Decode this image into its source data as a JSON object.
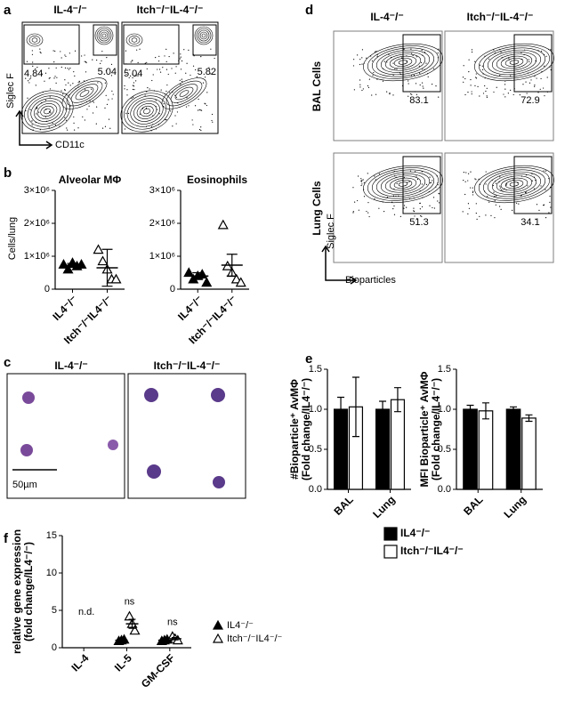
{
  "panel_labels": [
    "a",
    "b",
    "c",
    "d",
    "e",
    "f"
  ],
  "panel_a": {
    "plots": [
      {
        "title": "IL-4⁻/⁻",
        "gates": [
          4.84,
          5.04
        ]
      },
      {
        "title": "Itch⁻/⁻IL-4⁻/⁻",
        "gates": [
          5.04,
          5.82
        ]
      }
    ],
    "ylabel": "Siglec F",
    "xlabel": "CD11c"
  },
  "panel_c": {
    "titles": [
      "IL-4⁻/⁻",
      "Itch⁻/⁻IL-4⁻/⁻"
    ],
    "scale_bar": "50µm"
  },
  "panel_d": {
    "columns": [
      "IL-4⁻/⁻",
      "Itch⁻/⁻IL-4⁻/⁻"
    ],
    "rows": [
      {
        "label": "BAL Cells",
        "gates": [
          83.1,
          72.9
        ]
      },
      {
        "label": "Lung Cells",
        "gates": [
          51.3,
          34.1
        ]
      }
    ],
    "ylabel": "Siglec F",
    "xlabel": "Bioparticles"
  },
  "chart_data": [
    {
      "type": "dot",
      "title": "Alveolar MΦ",
      "ylabel": "Cells/lung",
      "categories": [
        "IL4⁻/⁻",
        "Itch⁻/⁻IL4⁻/⁻"
      ],
      "markers": [
        "filled",
        "open"
      ],
      "color": "#000000",
      "values": [
        [
          750000,
          600000,
          800000,
          700000,
          750000
        ],
        [
          1200000,
          850000,
          600000,
          300000,
          300000
        ]
      ],
      "means": [
        720000,
        650000
      ],
      "errors": [
        60000,
        560000
      ],
      "ylim": [
        0,
        3000000
      ],
      "yticks": [
        0,
        {
          "value": 1000000,
          "label": "1×10⁶"
        },
        {
          "value": 2000000,
          "label": "2×10⁶"
        },
        {
          "value": 3000000,
          "label": "3×10⁶"
        }
      ]
    },
    {
      "type": "dot",
      "title": "Eosinophils",
      "categories": [
        "IL4⁻/⁻",
        "Itch⁻/⁻IL4⁻/⁻"
      ],
      "markers": [
        "filled",
        "open"
      ],
      "color": "#000000",
      "values": [
        [
          500000,
          300000,
          400000,
          450000,
          200000
        ],
        [
          1950000,
          700000,
          500000,
          300000,
          200000
        ]
      ],
      "means": [
        400000,
        730000
      ],
      "errors": [
        100000,
        330000
      ],
      "ylim": [
        0,
        3000000
      ],
      "yticks": [
        0,
        {
          "value": 1000000,
          "label": "1×10⁶"
        },
        {
          "value": 2000000,
          "label": "2×10⁶"
        },
        {
          "value": 3000000,
          "label": "3×10⁶"
        }
      ]
    },
    {
      "type": "bar",
      "ylabel": [
        "#Bioparticle⁺ AvMΦ",
        "(Fold change/IL4⁻/⁻)"
      ],
      "categories": [
        "BAL",
        "Lung"
      ],
      "series": [
        {
          "name": "IL4⁻/⁻",
          "color": "#000000",
          "values": [
            1.0,
            1.0
          ],
          "errors": [
            0.15,
            0.1
          ]
        },
        {
          "name": "Itch⁻/⁻IL4⁻/⁻",
          "color": "#ffffff",
          "values": [
            1.03,
            1.12
          ],
          "errors": [
            0.37,
            0.15
          ]
        }
      ],
      "ylim": [
        0,
        1.5
      ],
      "yticks": [
        {
          "value": 0,
          "label": "0.0"
        },
        0.5,
        {
          "value": 1,
          "label": "1.0"
        },
        1.5
      ]
    },
    {
      "type": "bar",
      "ylabel": [
        "MFI Bioparticle⁺ AvMΦ",
        "(Fold change/IL4⁻/⁻)"
      ],
      "categories": [
        "BAL",
        "Lung"
      ],
      "series": [
        {
          "color": "#000000",
          "values": [
            1.0,
            1.0
          ],
          "errors": [
            0.05,
            0.03
          ]
        },
        {
          "color": "#ffffff",
          "values": [
            0.98,
            0.89
          ],
          "errors": [
            0.1,
            0.04
          ]
        }
      ],
      "ylim": [
        0,
        1.5
      ],
      "yticks": [
        {
          "value": 0,
          "label": "0.0"
        },
        0.5,
        {
          "value": 1,
          "label": "1.0"
        },
        1.5
      ]
    },
    {
      "type": "dot",
      "ylabel": [
        "relative gene expression",
        "(fold change/IL4⁻/⁻)"
      ],
      "categories": [
        "IL-4",
        "IL-5",
        "GM-CSF"
      ],
      "category_annotations": [
        "n.d.",
        "ns",
        "ns"
      ],
      "series": [
        {
          "name": "IL4⁻/⁻",
          "marker": "filled",
          "color": "#000000",
          "values": [
            null,
            [
              0.9,
              1.0,
              1.1
            ],
            [
              0.9,
              1.0,
              1.1
            ]
          ],
          "means": [
            null,
            1.0,
            1.0
          ],
          "errors": [
            null,
            0.06,
            0.06
          ]
        },
        {
          "name": "Itch⁻/⁻IL4⁻/⁻",
          "marker": "open",
          "color": "#000000",
          "values": [
            null,
            [
              4.2,
              3.2,
              2.3
            ],
            [
              1.5,
              1.2,
              1.0
            ]
          ],
          "means": [
            null,
            3.2,
            1.2
          ],
          "errors": [
            null,
            0.6,
            0.15
          ]
        }
      ],
      "ylim": [
        0,
        15
      ],
      "yticks": [
        0,
        5,
        10,
        15
      ]
    }
  ]
}
